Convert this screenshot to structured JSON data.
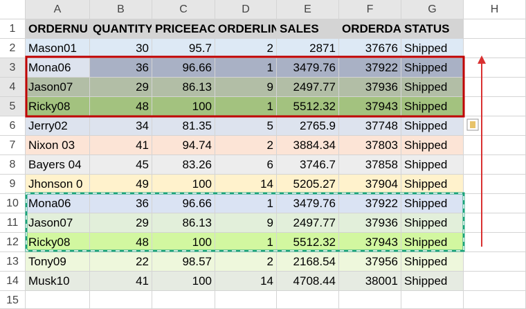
{
  "sheet": {
    "columns": [
      "A",
      "B",
      "C",
      "D",
      "E",
      "F",
      "G",
      "H"
    ],
    "row_numbers": [
      1,
      2,
      3,
      4,
      5,
      6,
      7,
      8,
      9,
      10,
      11,
      12,
      13,
      14,
      15
    ],
    "rows": [
      [
        "ORDERNU",
        "QUANTITY",
        "PRICEEAC",
        "ORDERLIN",
        "SALES",
        "ORDERDA",
        "STATUS"
      ],
      [
        "Mason01",
        30,
        95.7,
        2,
        2871,
        37676,
        "Shipped"
      ],
      [
        "Mona06",
        36,
        96.66,
        1,
        3479.76,
        37922,
        "Shipped"
      ],
      [
        "Jason07",
        29,
        86.13,
        9,
        2497.77,
        37936,
        "Shipped"
      ],
      [
        "Ricky08",
        48,
        100,
        1,
        5512.32,
        37943,
        "Shipped"
      ],
      [
        "Jerry02",
        34,
        81.35,
        5,
        2765.9,
        37748,
        "Shipped"
      ],
      [
        "Nixon 03",
        41,
        94.74,
        2,
        3884.34,
        37803,
        "Shipped"
      ],
      [
        "Bayers 04",
        45,
        83.26,
        6,
        3746.7,
        37858,
        "Shipped"
      ],
      [
        "Jhonson 0",
        49,
        100,
        14,
        5205.27,
        37904,
        "Shipped"
      ],
      [
        "Mona06",
        36,
        96.66,
        1,
        3479.76,
        37922,
        "Shipped"
      ],
      [
        "Jason07",
        29,
        86.13,
        9,
        2497.77,
        37936,
        "Shipped"
      ],
      [
        "Ricky08",
        48,
        100,
        1,
        5512.32,
        37943,
        "Shipped"
      ],
      [
        "Tony09",
        22,
        98.57,
        2,
        2168.54,
        37956,
        "Shipped"
      ],
      [
        "Musk10",
        41,
        100,
        14,
        4708.44,
        38001,
        "Shipped"
      ]
    ]
  }
}
